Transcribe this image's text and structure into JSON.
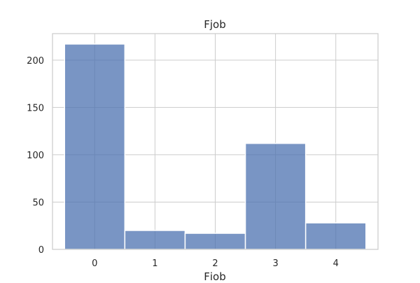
{
  "chart_data": {
    "type": "bar",
    "title": "Fjob",
    "xlabel": "Fjob",
    "ylabel": "",
    "categories": [
      "0",
      "1",
      "2",
      "3",
      "4"
    ],
    "values": [
      217,
      20,
      17,
      112,
      28
    ],
    "ylim": [
      0,
      228
    ],
    "xlim": [
      -0.7,
      4.7
    ],
    "y_ticks": [
      0,
      50,
      100,
      150,
      200
    ],
    "grid": true,
    "bar_color": "#4c72b0",
    "bar_opacity": 0.75,
    "grid_color": "#cccccc",
    "axes_color": "#cccccc"
  }
}
